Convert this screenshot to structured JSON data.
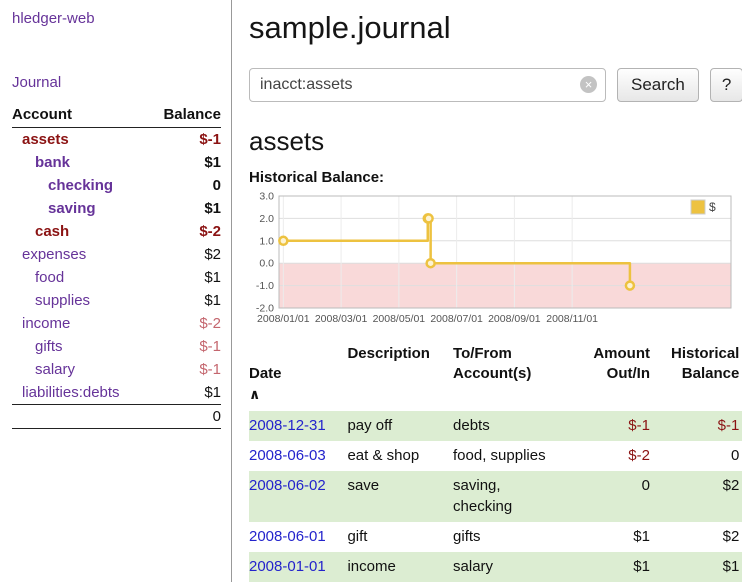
{
  "colors": {
    "purple": "#663399",
    "maroon": "#8b1313",
    "rose": "#c4666e",
    "link_blue": "#2323cc",
    "row_green": "#dcedd2",
    "series_yellow": "#EDC240",
    "negative_area": "#f9d9d9"
  },
  "sidebar": {
    "app_link": "hledger-web",
    "journal_link": "Journal",
    "accounts": {
      "header_account": "Account",
      "header_balance": "Balance",
      "rows": [
        {
          "name": "assets",
          "balance": "$-1",
          "indent": 0,
          "bold": true,
          "name_color": "maroon",
          "balance_color": "maroon"
        },
        {
          "name": "bank",
          "balance": "$1",
          "indent": 1,
          "bold": true,
          "name_color": "purple",
          "balance_color": "black"
        },
        {
          "name": "checking",
          "balance": "0",
          "indent": 2,
          "bold": true,
          "name_color": "purple",
          "balance_color": "black"
        },
        {
          "name": "saving",
          "balance": "$1",
          "indent": 2,
          "bold": true,
          "name_color": "purple",
          "balance_color": "black"
        },
        {
          "name": "cash",
          "balance": "$-2",
          "indent": 1,
          "bold": true,
          "name_color": "maroon",
          "balance_color": "maroon"
        },
        {
          "name": "expenses",
          "balance": "$2",
          "indent": 0,
          "bold": false,
          "name_color": "purple",
          "balance_color": "black"
        },
        {
          "name": "food",
          "balance": "$1",
          "indent": 1,
          "bold": false,
          "name_color": "purple",
          "balance_color": "black"
        },
        {
          "name": "supplies",
          "balance": "$1",
          "indent": 1,
          "bold": false,
          "name_color": "purple",
          "balance_color": "black"
        },
        {
          "name": "income",
          "balance": "$-2",
          "indent": 0,
          "bold": false,
          "name_color": "purple",
          "balance_color": "rose"
        },
        {
          "name": "gifts",
          "balance": "$-1",
          "indent": 1,
          "bold": false,
          "name_color": "purple",
          "balance_color": "rose"
        },
        {
          "name": "salary",
          "balance": "$-1",
          "indent": 1,
          "bold": false,
          "name_color": "purple",
          "balance_color": "rose"
        },
        {
          "name": "liabilities:debts",
          "balance": "$1",
          "indent": 0,
          "bold": false,
          "name_color": "purple",
          "balance_color": "black"
        }
      ],
      "total": "0"
    }
  },
  "main": {
    "title": "sample.journal",
    "search": {
      "value": "inacct:assets",
      "clear_icon": "×",
      "button_label": "Search",
      "help_label": "?"
    },
    "section_heading": "assets",
    "chart_title": "Historical Balance:"
  },
  "chart_data": {
    "type": "line",
    "title": "Historical Balance",
    "legend": {
      "label": "$",
      "position": "top-right",
      "swatch_color": "#EDC240"
    },
    "series": [
      {
        "name": "$",
        "color": "#EDC240",
        "step": true,
        "points": [
          {
            "date": "2008-01-01",
            "m": 0,
            "value": 1
          },
          {
            "date": "2008-06-01",
            "m": 5.0,
            "value": 2
          },
          {
            "date": "2008-06-02",
            "m": 5.03,
            "value": 2
          },
          {
            "date": "2008-06-03",
            "m": 5.1,
            "value": 0
          },
          {
            "date": "2008-12-31",
            "m": 12.0,
            "value": -1
          }
        ]
      }
    ],
    "x_axis": {
      "range_m": [
        -0.15,
        15.5
      ],
      "ticks": [
        {
          "m": 0,
          "label": "2008/01/01"
        },
        {
          "m": 2,
          "label": "2008/03/01"
        },
        {
          "m": 4,
          "label": "2008/05/01"
        },
        {
          "m": 6,
          "label": "2008/07/01"
        },
        {
          "m": 8,
          "label": "2008/09/01"
        },
        {
          "m": 10,
          "label": "2008/11/01"
        }
      ]
    },
    "y_axis": {
      "range": [
        -2,
        3
      ],
      "tick_values": [
        3,
        2,
        1,
        0,
        -1,
        -2
      ],
      "ticks": [
        "3.0",
        "2.0",
        "1.0",
        "0.0",
        "-1.0",
        "-2.0"
      ]
    },
    "grid": true,
    "negative_region": {
      "from": 0,
      "to": -2,
      "fill": "#f9d9d9"
    }
  },
  "register": {
    "headers": {
      "date": "Date",
      "sort_icon": "∧",
      "description": "Description",
      "accounts": "To/From\nAccount(s)",
      "amount": "Amount\nOut/In",
      "balance": "Historical\nBalance"
    },
    "rows": [
      {
        "date": "2008-12-31",
        "description": "pay off",
        "accounts": "debts",
        "amount": "$-1",
        "amount_neg": true,
        "balance": "$-1",
        "balance_neg": true
      },
      {
        "date": "2008-06-03",
        "description": "eat & shop",
        "accounts": "food, supplies",
        "amount": "$-2",
        "amount_neg": true,
        "balance": "0",
        "balance_neg": false
      },
      {
        "date": "2008-06-02",
        "description": "save",
        "accounts": "saving,\nchecking",
        "amount": "0",
        "amount_neg": false,
        "balance": "$2",
        "balance_neg": false
      },
      {
        "date": "2008-06-01",
        "description": "gift",
        "accounts": "gifts",
        "amount": "$1",
        "amount_neg": false,
        "balance": "$2",
        "balance_neg": false
      },
      {
        "date": "2008-01-01",
        "description": "income",
        "accounts": "salary",
        "amount": "$1",
        "amount_neg": false,
        "balance": "$1",
        "balance_neg": false
      }
    ]
  }
}
